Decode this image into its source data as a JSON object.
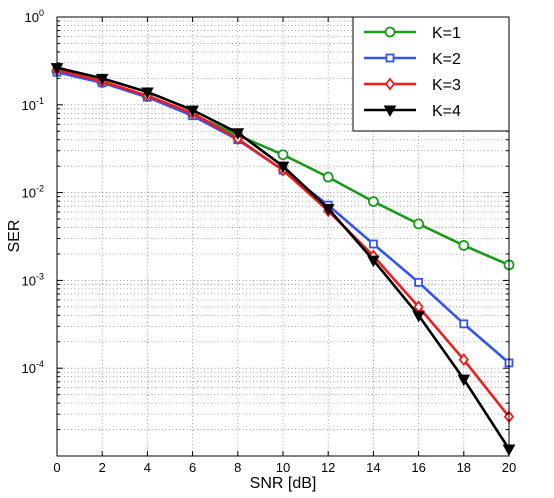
{
  "chart_data": {
    "type": "line",
    "title": "",
    "xlabel": "SNR [dB]",
    "ylabel": "SER",
    "x": [
      0,
      2,
      4,
      6,
      8,
      10,
      12,
      14,
      16,
      18,
      20
    ],
    "xlim": [
      0,
      20
    ],
    "ylim": [
      1e-05,
      1
    ],
    "yscale": "log",
    "grid": true,
    "legend_position": "top-right",
    "x_ticks": [
      "0",
      "2",
      "4",
      "6",
      "8",
      "10",
      "12",
      "14",
      "16",
      "18",
      "20"
    ],
    "y_ticks": [
      {
        "base": "10",
        "exp": "0"
      },
      {
        "base": "10",
        "exp": "-1"
      },
      {
        "base": "10",
        "exp": "-2"
      },
      {
        "base": "10",
        "exp": "-3"
      },
      {
        "base": "10",
        "exp": "-4"
      }
    ],
    "series": [
      {
        "name": "K=1",
        "color": "#1a9a1a",
        "marker": "circle",
        "values": [
          0.24,
          0.18,
          0.125,
          0.078,
          0.045,
          0.027,
          0.015,
          0.0079,
          0.0044,
          0.0025,
          0.0015
        ]
      },
      {
        "name": "K=2",
        "color": "#3355ee",
        "marker": "square",
        "values": [
          0.235,
          0.178,
          0.122,
          0.075,
          0.04,
          0.018,
          0.0072,
          0.0026,
          0.00095,
          0.00032,
          0.000115
        ]
      },
      {
        "name": "K=3",
        "color": "#ee1c1c",
        "marker": "diamond",
        "values": [
          0.25,
          0.185,
          0.127,
          0.08,
          0.041,
          0.018,
          0.0062,
          0.0019,
          0.0005,
          0.000125,
          2.8e-05
        ]
      },
      {
        "name": "K=4",
        "color": "#000000",
        "marker": "triangle-down",
        "values": [
          0.265,
          0.2,
          0.14,
          0.087,
          0.048,
          0.02,
          0.0066,
          0.0017,
          0.0004,
          7.5e-05,
          1.2e-05
        ]
      }
    ]
  }
}
